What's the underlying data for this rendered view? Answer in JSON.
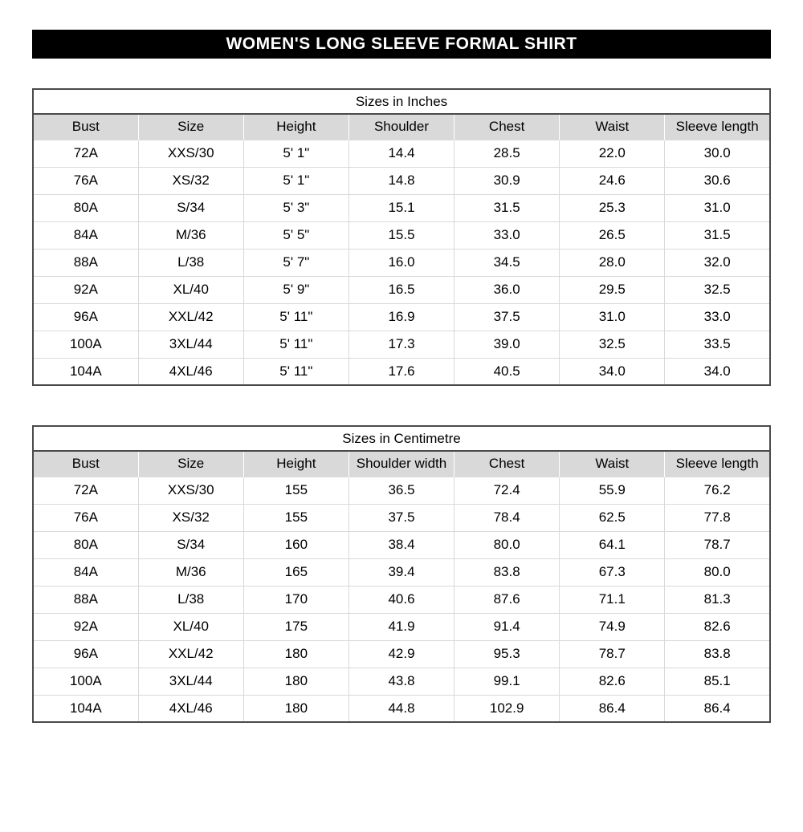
{
  "page_title": "WOMEN'S LONG SLEEVE FORMAL SHIRT",
  "colors": {
    "title_bar_bg": "#000000",
    "title_bar_text": "#ffffff",
    "table_header_bg": "#d9d9d9",
    "table_outer_border": "#4a4a4a",
    "table_grid_line": "#d9d9d9"
  },
  "tables": [
    {
      "title": "Sizes in Inches",
      "columns": [
        "Bust",
        "Size",
        "Height",
        "Shoulder",
        "Chest",
        "Waist",
        "Sleeve length"
      ],
      "rows": [
        [
          "72A",
          "XXS/30",
          "5' 1\"",
          "14.4",
          "28.5",
          "22.0",
          "30.0"
        ],
        [
          "76A",
          "XS/32",
          "5' 1\"",
          "14.8",
          "30.9",
          "24.6",
          "30.6"
        ],
        [
          "80A",
          "S/34",
          "5' 3\"",
          "15.1",
          "31.5",
          "25.3",
          "31.0"
        ],
        [
          "84A",
          "M/36",
          "5' 5\"",
          "15.5",
          "33.0",
          "26.5",
          "31.5"
        ],
        [
          "88A",
          "L/38",
          "5' 7\"",
          "16.0",
          "34.5",
          "28.0",
          "32.0"
        ],
        [
          "92A",
          "XL/40",
          "5' 9\"",
          "16.5",
          "36.0",
          "29.5",
          "32.5"
        ],
        [
          "96A",
          "XXL/42",
          "5' 11\"",
          "16.9",
          "37.5",
          "31.0",
          "33.0"
        ],
        [
          "100A",
          "3XL/44",
          "5' 11\"",
          "17.3",
          "39.0",
          "32.5",
          "33.5"
        ],
        [
          "104A",
          "4XL/46",
          "5' 11\"",
          "17.6",
          "40.5",
          "34.0",
          "34.0"
        ]
      ]
    },
    {
      "title": "Sizes in Centimetre",
      "columns": [
        "Bust",
        "Size",
        "Height",
        "Shoulder width",
        "Chest",
        "Waist",
        "Sleeve length"
      ],
      "rows": [
        [
          "72A",
          "XXS/30",
          "155",
          "36.5",
          "72.4",
          "55.9",
          "76.2"
        ],
        [
          "76A",
          "XS/32",
          "155",
          "37.5",
          "78.4",
          "62.5",
          "77.8"
        ],
        [
          "80A",
          "S/34",
          "160",
          "38.4",
          "80.0",
          "64.1",
          "78.7"
        ],
        [
          "84A",
          "M/36",
          "165",
          "39.4",
          "83.8",
          "67.3",
          "80.0"
        ],
        [
          "88A",
          "L/38",
          "170",
          "40.6",
          "87.6",
          "71.1",
          "81.3"
        ],
        [
          "92A",
          "XL/40",
          "175",
          "41.9",
          "91.4",
          "74.9",
          "82.6"
        ],
        [
          "96A",
          "XXL/42",
          "180",
          "42.9",
          "95.3",
          "78.7",
          "83.8"
        ],
        [
          "100A",
          "3XL/44",
          "180",
          "43.8",
          "99.1",
          "82.6",
          "85.1"
        ],
        [
          "104A",
          "4XL/46",
          "180",
          "44.8",
          "102.9",
          "86.4",
          "86.4"
        ]
      ]
    }
  ]
}
